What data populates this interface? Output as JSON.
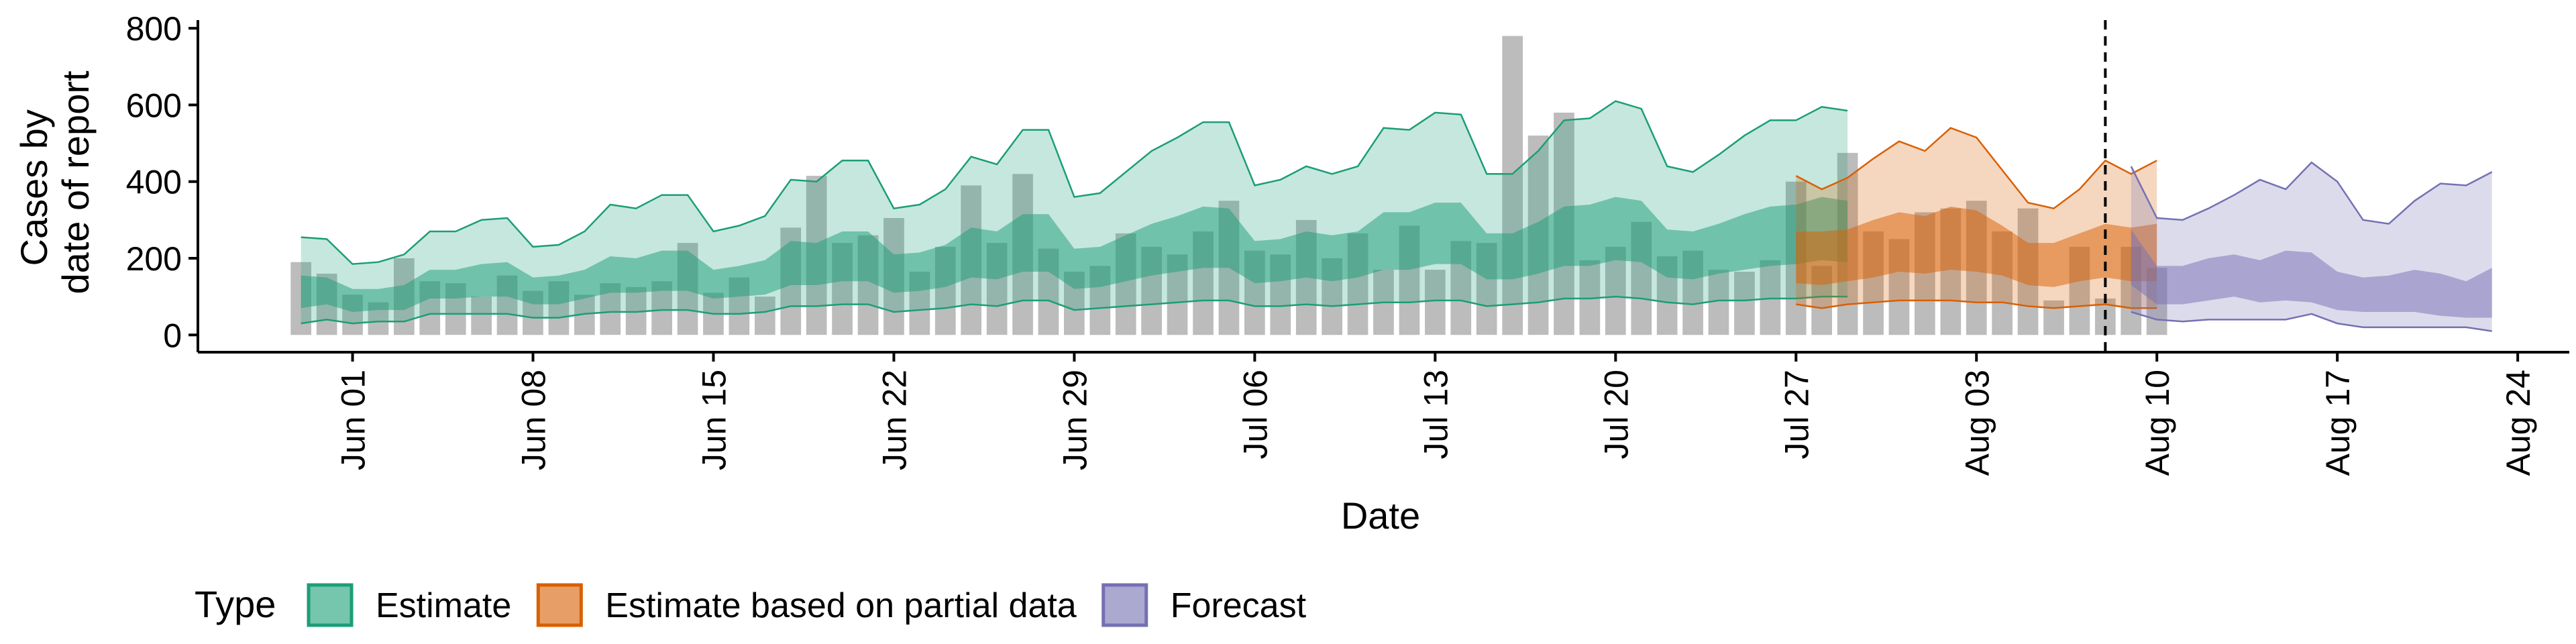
{
  "chart_data": {
    "type": "area",
    "title": "",
    "xlabel": "Date",
    "ylabel_lines": [
      "Cases by",
      "date of report"
    ],
    "ylim": [
      -45,
      830
    ],
    "yticks": [
      0,
      200,
      400,
      600,
      800
    ],
    "xlim": [
      "2021-05-26",
      "2021-08-26"
    ],
    "xticks": [
      "2021-06-01",
      "2021-06-08",
      "2021-06-15",
      "2021-06-22",
      "2021-06-29",
      "2021-07-06",
      "2021-07-13",
      "2021-07-20",
      "2021-07-27",
      "2021-08-03",
      "2021-08-10",
      "2021-08-17",
      "2021-08-24"
    ],
    "xtick_labels": [
      "Jun 01",
      "Jun 08",
      "Jun 15",
      "Jun 22",
      "Jun 29",
      "Jul 06",
      "Jul 13",
      "Jul 20",
      "Jul 27",
      "Aug 03",
      "Aug 10",
      "Aug 17",
      "Aug 24"
    ],
    "vline_date": "2021-08-08",
    "legend": {
      "title": "Type",
      "position": "bottom-left",
      "items": [
        {
          "label": "Estimate",
          "color": "#1b9e77"
        },
        {
          "label": "Estimate based on partial data",
          "color": "#d95f02"
        },
        {
          "label": "Forecast",
          "color": "#7570b3"
        }
      ]
    },
    "bars": {
      "color": "#a6a6a6",
      "start_date": "2021-05-30",
      "values": [
        190,
        160,
        105,
        85,
        200,
        140,
        135,
        100,
        155,
        115,
        140,
        105,
        135,
        125,
        140,
        240,
        110,
        150,
        100,
        280,
        415,
        240,
        260,
        305,
        165,
        230,
        390,
        240,
        420,
        225,
        165,
        180,
        265,
        230,
        210,
        270,
        350,
        220,
        210,
        300,
        200,
        265,
        170,
        285,
        170,
        245,
        240,
        780,
        520,
        580,
        195,
        230,
        295,
        205,
        220,
        170,
        165,
        195,
        400,
        180,
        475,
        270,
        250,
        320,
        330,
        350,
        270,
        330,
        90,
        230,
        95,
        230,
        175
      ]
    },
    "series": [
      {
        "name": "Estimate",
        "color": "#1b9e77",
        "start_date": "2021-05-30",
        "outer_upper": [
          255,
          250,
          185,
          190,
          210,
          270,
          270,
          300,
          305,
          230,
          235,
          270,
          340,
          330,
          365,
          365,
          270,
          285,
          310,
          405,
          400,
          455,
          455,
          330,
          340,
          380,
          465,
          445,
          535,
          535,
          360,
          370,
          425,
          480,
          515,
          555,
          555,
          390,
          405,
          440,
          420,
          440,
          540,
          535,
          580,
          575,
          420,
          420,
          480,
          560,
          565,
          610,
          590,
          440,
          425,
          470,
          520,
          560,
          560,
          595,
          585
        ],
        "outer_lower": [
          30,
          40,
          30,
          35,
          35,
          55,
          55,
          55,
          55,
          45,
          45,
          55,
          60,
          60,
          65,
          65,
          55,
          55,
          60,
          75,
          75,
          80,
          80,
          60,
          65,
          70,
          80,
          75,
          90,
          90,
          65,
          70,
          75,
          80,
          85,
          90,
          90,
          75,
          75,
          80,
          75,
          80,
          85,
          85,
          90,
          90,
          75,
          80,
          85,
          95,
          95,
          100,
          95,
          85,
          80,
          90,
          90,
          95,
          95,
          100,
          100
        ],
        "inner_upper": [
          155,
          150,
          120,
          120,
          130,
          170,
          170,
          185,
          190,
          150,
          155,
          170,
          205,
          200,
          220,
          220,
          170,
          180,
          195,
          245,
          240,
          270,
          270,
          210,
          215,
          235,
          280,
          270,
          315,
          315,
          225,
          230,
          260,
          290,
          310,
          335,
          330,
          245,
          250,
          270,
          260,
          270,
          320,
          320,
          345,
          345,
          265,
          265,
          295,
          335,
          340,
          360,
          350,
          275,
          270,
          290,
          315,
          335,
          340,
          360,
          350
        ],
        "inner_lower": [
          70,
          80,
          60,
          65,
          65,
          95,
          95,
          100,
          100,
          80,
          80,
          95,
          110,
          110,
          115,
          115,
          95,
          100,
          105,
          130,
          130,
          140,
          140,
          110,
          115,
          125,
          150,
          145,
          165,
          165,
          120,
          125,
          140,
          155,
          165,
          175,
          175,
          135,
          140,
          150,
          140,
          150,
          170,
          170,
          185,
          185,
          145,
          145,
          160,
          180,
          180,
          195,
          190,
          150,
          145,
          160,
          170,
          180,
          185,
          195,
          190
        ]
      },
      {
        "name": "Estimate based on partial data",
        "color": "#d95f02",
        "start_date": "2021-07-27",
        "outer_upper": [
          415,
          380,
          410,
          460,
          505,
          480,
          540,
          515,
          430,
          345,
          330,
          380,
          455,
          420,
          455
        ],
        "outer_lower": [
          80,
          70,
          80,
          85,
          90,
          90,
          90,
          85,
          85,
          75,
          70,
          75,
          80,
          70,
          70
        ],
        "inner_upper": [
          270,
          270,
          275,
          300,
          320,
          310,
          335,
          325,
          285,
          240,
          240,
          265,
          290,
          280,
          290
        ],
        "inner_lower": [
          135,
          130,
          140,
          150,
          165,
          160,
          170,
          165,
          155,
          130,
          125,
          140,
          150,
          140,
          140
        ]
      },
      {
        "name": "Forecast",
        "color": "#7570b3",
        "start_date": "2021-08-09",
        "outer_upper": [
          440,
          305,
          300,
          330,
          365,
          405,
          380,
          450,
          400,
          300,
          290,
          350,
          395,
          390,
          425
        ],
        "outer_lower": [
          60,
          40,
          35,
          40,
          40,
          40,
          40,
          55,
          30,
          20,
          20,
          20,
          20,
          20,
          10
        ],
        "inner_upper": [
          275,
          180,
          180,
          200,
          210,
          195,
          220,
          215,
          165,
          150,
          155,
          170,
          160,
          140,
          175
        ],
        "inner_lower": [
          130,
          80,
          80,
          90,
          100,
          85,
          90,
          85,
          65,
          60,
          60,
          60,
          50,
          45,
          45
        ]
      }
    ]
  }
}
